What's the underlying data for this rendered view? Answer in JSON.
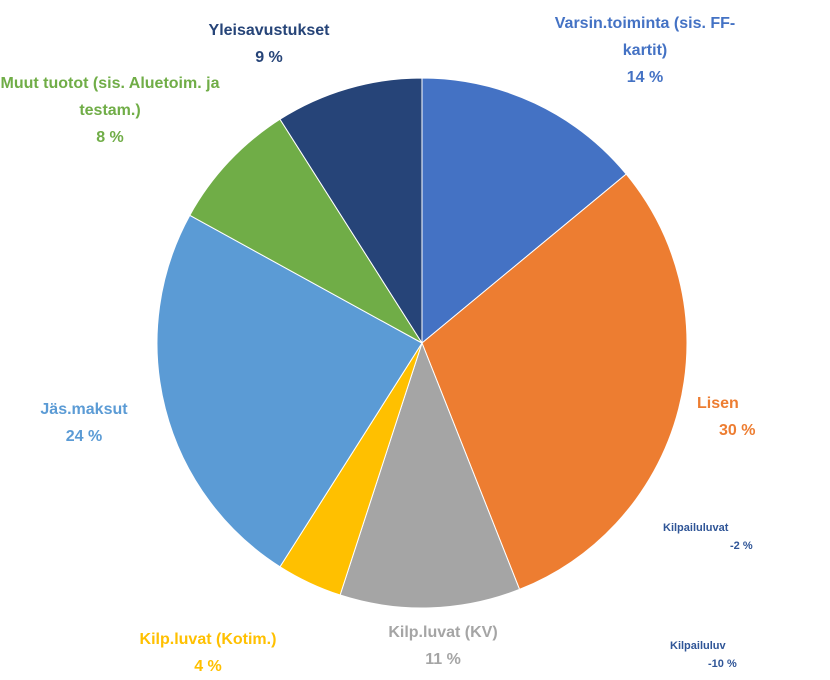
{
  "chart_data": {
    "type": "pie",
    "categories": [
      "Varsin.toiminta (sis. FF-kartit)",
      "Lisen",
      "Kilpailuluvat",
      "Kilpailuluv",
      "Kilp.luvat (KV)",
      "Kilp.luvat (Kotim.)",
      "Jäs.maksut",
      "Muut tuotot (sis. Aluetoim. ja testam.)",
      "Yleisavustukset"
    ],
    "values": [
      14,
      30,
      -2,
      -10,
      11,
      4,
      24,
      8,
      9
    ],
    "value_labels": [
      "14 %",
      "30 %",
      "-2 %",
      "-10 %",
      "11 %",
      "4 %",
      "24 %",
      "8 %",
      "9 %"
    ],
    "colors": [
      "#4472c4",
      "#ed7d31",
      "#2f5597",
      "#2f5597",
      "#a5a5a5",
      "#ffc000",
      "#5b9bd5",
      "#70ad47",
      "#264478"
    ]
  }
}
